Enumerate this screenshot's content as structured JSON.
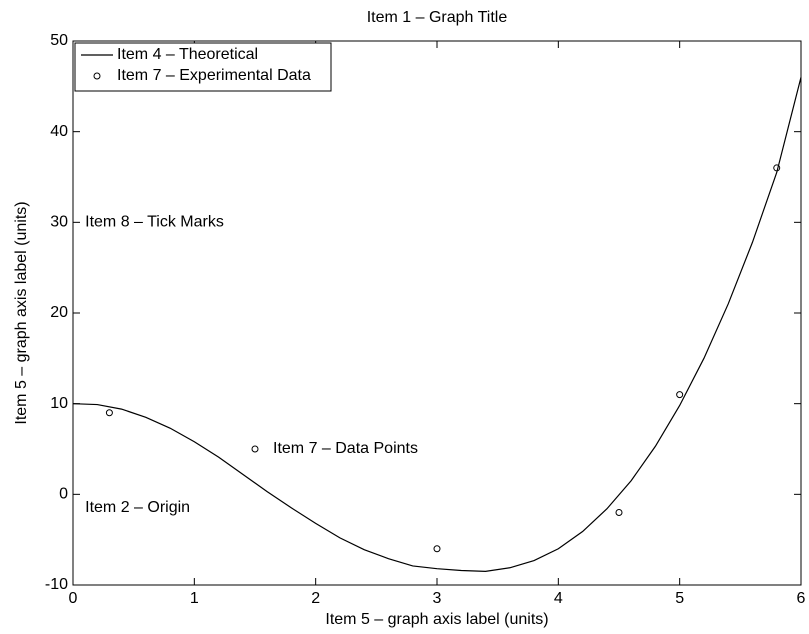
{
  "chart_data": {
    "type": "line",
    "title": "Item 1 – Graph Title",
    "xlabel": "Item 5 – graph axis label (units)",
    "ylabel": "Item 5 – graph axis label (units)",
    "xlim": [
      0,
      6
    ],
    "ylim": [
      -10,
      50
    ],
    "xticks": [
      0,
      1,
      2,
      3,
      4,
      5,
      6
    ],
    "yticks": [
      -10,
      0,
      10,
      20,
      30,
      40,
      50
    ],
    "legend": "upper left",
    "series": [
      {
        "name": "Item 4 – Theoretical",
        "color": "#000000",
        "style": "line",
        "x": [
          0,
          0.2,
          0.4,
          0.6,
          0.8,
          1.0,
          1.2,
          1.4,
          1.6,
          1.8,
          2.0,
          2.2,
          2.4,
          2.6,
          2.8,
          3.0,
          3.2,
          3.4,
          3.6,
          3.8,
          4.0,
          4.2,
          4.4,
          4.6,
          4.8,
          5.0,
          5.2,
          5.4,
          5.6,
          5.8,
          6.0
        ],
        "values": [
          10,
          9.9,
          9.4,
          8.5,
          7.3,
          5.8,
          4.1,
          2.2,
          0.3,
          -1.5,
          -3.2,
          -4.8,
          -6.1,
          -7.1,
          -7.9,
          -8.2,
          -8.4,
          -8.5,
          -8.1,
          -7.3,
          -6.0,
          -4.1,
          -1.6,
          1.5,
          5.3,
          9.8,
          15.0,
          21.0,
          27.8,
          35.5,
          46
        ]
      },
      {
        "name": "Item 7 – Experimental Data",
        "color": "#000000",
        "style": "marker",
        "x": [
          0.3,
          3,
          4.5,
          5,
          5.8
        ],
        "values": [
          9,
          -6,
          -2,
          11,
          36
        ]
      }
    ],
    "annotations": [
      {
        "text": "Item 8 – Tick Marks",
        "x": 0.1,
        "y": 30
      },
      {
        "text": "Item 2 – Origin",
        "x": 0.1,
        "y": -1.5
      },
      {
        "text": "Item 7 – Data Points",
        "x": 1.5,
        "y": 5,
        "marker": true
      }
    ]
  }
}
